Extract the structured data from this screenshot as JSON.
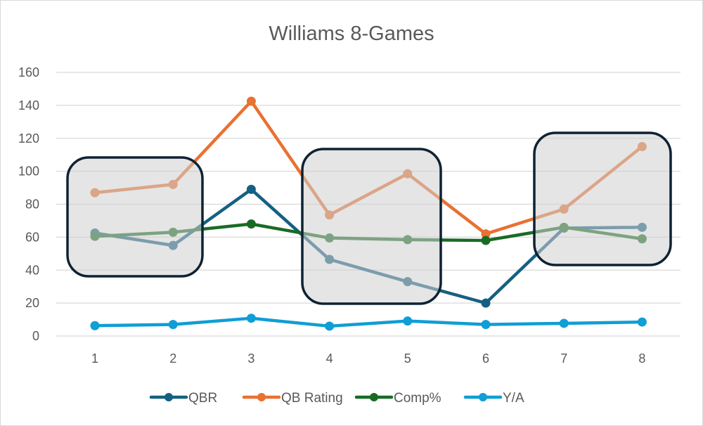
{
  "chart_data": {
    "type": "line",
    "title": "Williams 8-Games",
    "xlabel": "",
    "ylabel": "",
    "ylim": [
      0,
      160
    ],
    "yticks": [
      0,
      20,
      40,
      60,
      80,
      100,
      120,
      140,
      160
    ],
    "categories": [
      "1",
      "2",
      "3",
      "4",
      "5",
      "6",
      "7",
      "8"
    ],
    "grid": true,
    "legend_position": "bottom",
    "series": [
      {
        "name": "QBR",
        "color": "#156082",
        "values": [
          62.5,
          55,
          89,
          46.5,
          33,
          20,
          65.5,
          66
        ]
      },
      {
        "name": "QB Rating",
        "color": "#E97132",
        "values": [
          87,
          92,
          142.5,
          73.5,
          98.5,
          62,
          77,
          115
        ]
      },
      {
        "name": "Comp%",
        "color": "#196B24",
        "values": [
          60.5,
          63,
          68,
          59.5,
          58.5,
          58,
          66,
          59
        ]
      },
      {
        "name": "Y/A",
        "color": "#0F9ED5",
        "values": [
          6.3,
          7,
          10.8,
          6,
          9.1,
          7,
          7.7,
          8.5
        ]
      }
    ],
    "annotations": [
      {
        "type": "highlight-box",
        "games": [
          "1",
          "2"
        ]
      },
      {
        "type": "highlight-box",
        "games": [
          "4",
          "5"
        ]
      },
      {
        "type": "highlight-box",
        "games": [
          "7",
          "8"
        ]
      }
    ]
  }
}
